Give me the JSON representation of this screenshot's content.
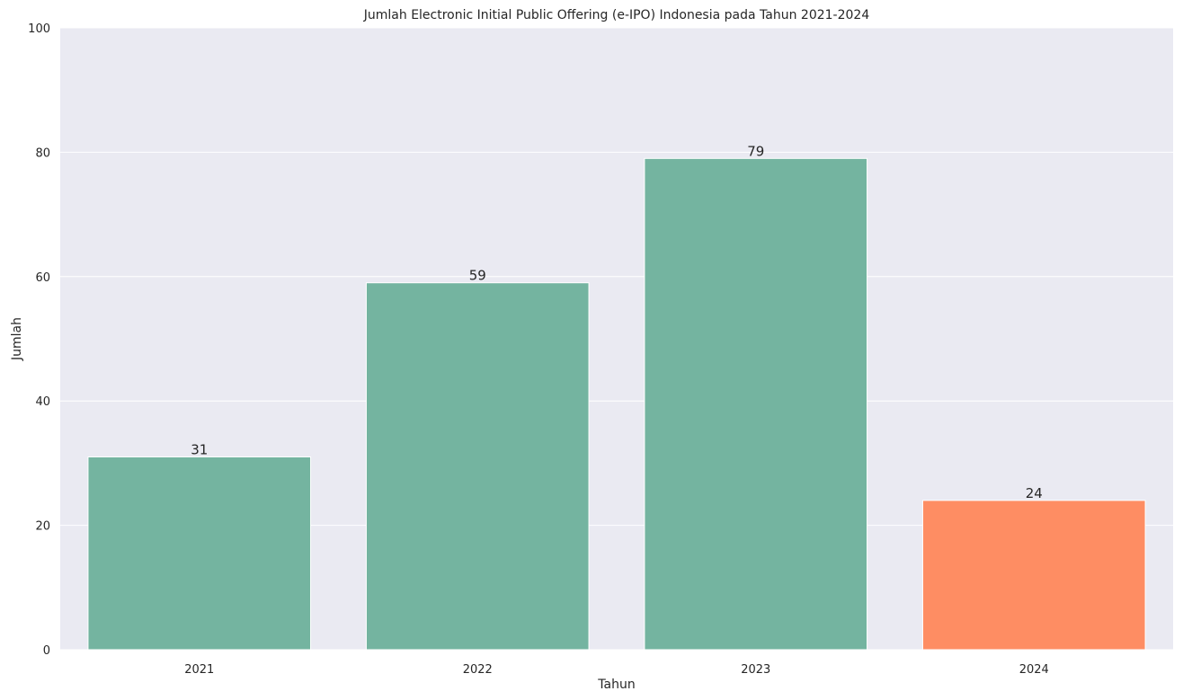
{
  "chart_data": {
    "type": "bar",
    "title": "Jumlah Electronic Initial Public Offering (e-IPO) Indonesia pada Tahun 2021-2024",
    "xlabel": "Tahun",
    "ylabel": "Jumlah",
    "categories": [
      "2021",
      "2022",
      "2023",
      "2024"
    ],
    "values": [
      31,
      59,
      79,
      24
    ],
    "bar_colors": [
      "#74b4a0",
      "#74b4a0",
      "#74b4a0",
      "#fe8d63"
    ],
    "ylim": [
      0,
      100
    ],
    "yticks": [
      "0",
      "20",
      "40",
      "60",
      "80",
      "100"
    ],
    "grid": true,
    "background": "#eaeaf2",
    "grid_color": "#ffffff"
  }
}
